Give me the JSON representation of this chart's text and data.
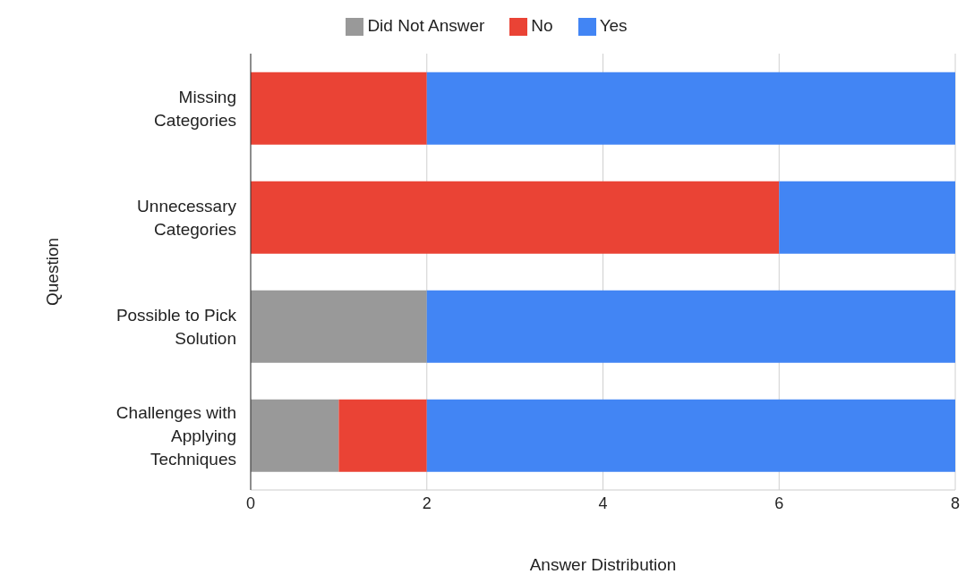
{
  "chart_data": {
    "type": "bar",
    "orientation": "horizontal",
    "stacked": true,
    "xlabel": "Answer Distribution",
    "ylabel": "Question",
    "categories": [
      "Missing Categories",
      "Unnecessary Categories",
      "Possible to Pick Solution",
      "Challenges with Applying Techniques"
    ],
    "series": [
      {
        "name": "Did Not Answer",
        "color": "#999999",
        "values": [
          0,
          0,
          2,
          1
        ]
      },
      {
        "name": "No",
        "color": "#ea4335",
        "values": [
          2,
          6,
          0,
          1
        ]
      },
      {
        "name": "Yes",
        "color": "#4285f4",
        "values": [
          6,
          2,
          6,
          6
        ]
      }
    ],
    "xlim": [
      0,
      8
    ],
    "xticks": [
      0,
      2,
      4,
      6,
      8
    ],
    "grid": "x",
    "legend": "top"
  }
}
